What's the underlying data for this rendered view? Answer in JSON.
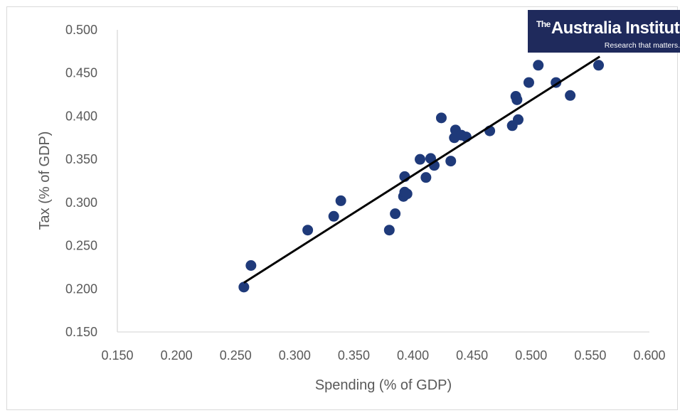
{
  "logo": {
    "prefix": "The",
    "name": "Australia Institute",
    "tagline": "Research that matters."
  },
  "chart_data": {
    "type": "scatter",
    "title": "",
    "xlabel": "Spending (% of GDP)",
    "ylabel": "Tax (% of GDP)",
    "xlim": [
      0.15,
      0.6
    ],
    "ylim": [
      0.15,
      0.5
    ],
    "x_ticks": [
      "0.150",
      "0.200",
      "0.250",
      "0.300",
      "0.350",
      "0.400",
      "0.450",
      "0.500",
      "0.550",
      "0.600"
    ],
    "y_ticks": [
      "0.150",
      "0.200",
      "0.250",
      "0.300",
      "0.350",
      "0.400",
      "0.450",
      "0.500"
    ],
    "grid": false,
    "marker_color": "#1f3a7a",
    "trendline_color": "#000000",
    "points": [
      {
        "x": 0.257,
        "y": 0.202
      },
      {
        "x": 0.263,
        "y": 0.227
      },
      {
        "x": 0.311,
        "y": 0.268
      },
      {
        "x": 0.333,
        "y": 0.284
      },
      {
        "x": 0.339,
        "y": 0.302
      },
      {
        "x": 0.38,
        "y": 0.268
      },
      {
        "x": 0.385,
        "y": 0.287
      },
      {
        "x": 0.392,
        "y": 0.307
      },
      {
        "x": 0.393,
        "y": 0.312
      },
      {
        "x": 0.395,
        "y": 0.31
      },
      {
        "x": 0.393,
        "y": 0.33
      },
      {
        "x": 0.406,
        "y": 0.35
      },
      {
        "x": 0.411,
        "y": 0.329
      },
      {
        "x": 0.415,
        "y": 0.351
      },
      {
        "x": 0.418,
        "y": 0.343
      },
      {
        "x": 0.424,
        "y": 0.398
      },
      {
        "x": 0.432,
        "y": 0.348
      },
      {
        "x": 0.435,
        "y": 0.375
      },
      {
        "x": 0.436,
        "y": 0.384
      },
      {
        "x": 0.441,
        "y": 0.378
      },
      {
        "x": 0.445,
        "y": 0.376
      },
      {
        "x": 0.465,
        "y": 0.383
      },
      {
        "x": 0.484,
        "y": 0.389
      },
      {
        "x": 0.487,
        "y": 0.423
      },
      {
        "x": 0.488,
        "y": 0.419
      },
      {
        "x": 0.489,
        "y": 0.396
      },
      {
        "x": 0.498,
        "y": 0.439
      },
      {
        "x": 0.506,
        "y": 0.459
      },
      {
        "x": 0.521,
        "y": 0.439
      },
      {
        "x": 0.533,
        "y": 0.424
      },
      {
        "x": 0.557,
        "y": 0.459
      }
    ],
    "trendline": {
      "x": [
        0.257,
        0.558
      ],
      "y": [
        0.207,
        0.469
      ]
    }
  }
}
